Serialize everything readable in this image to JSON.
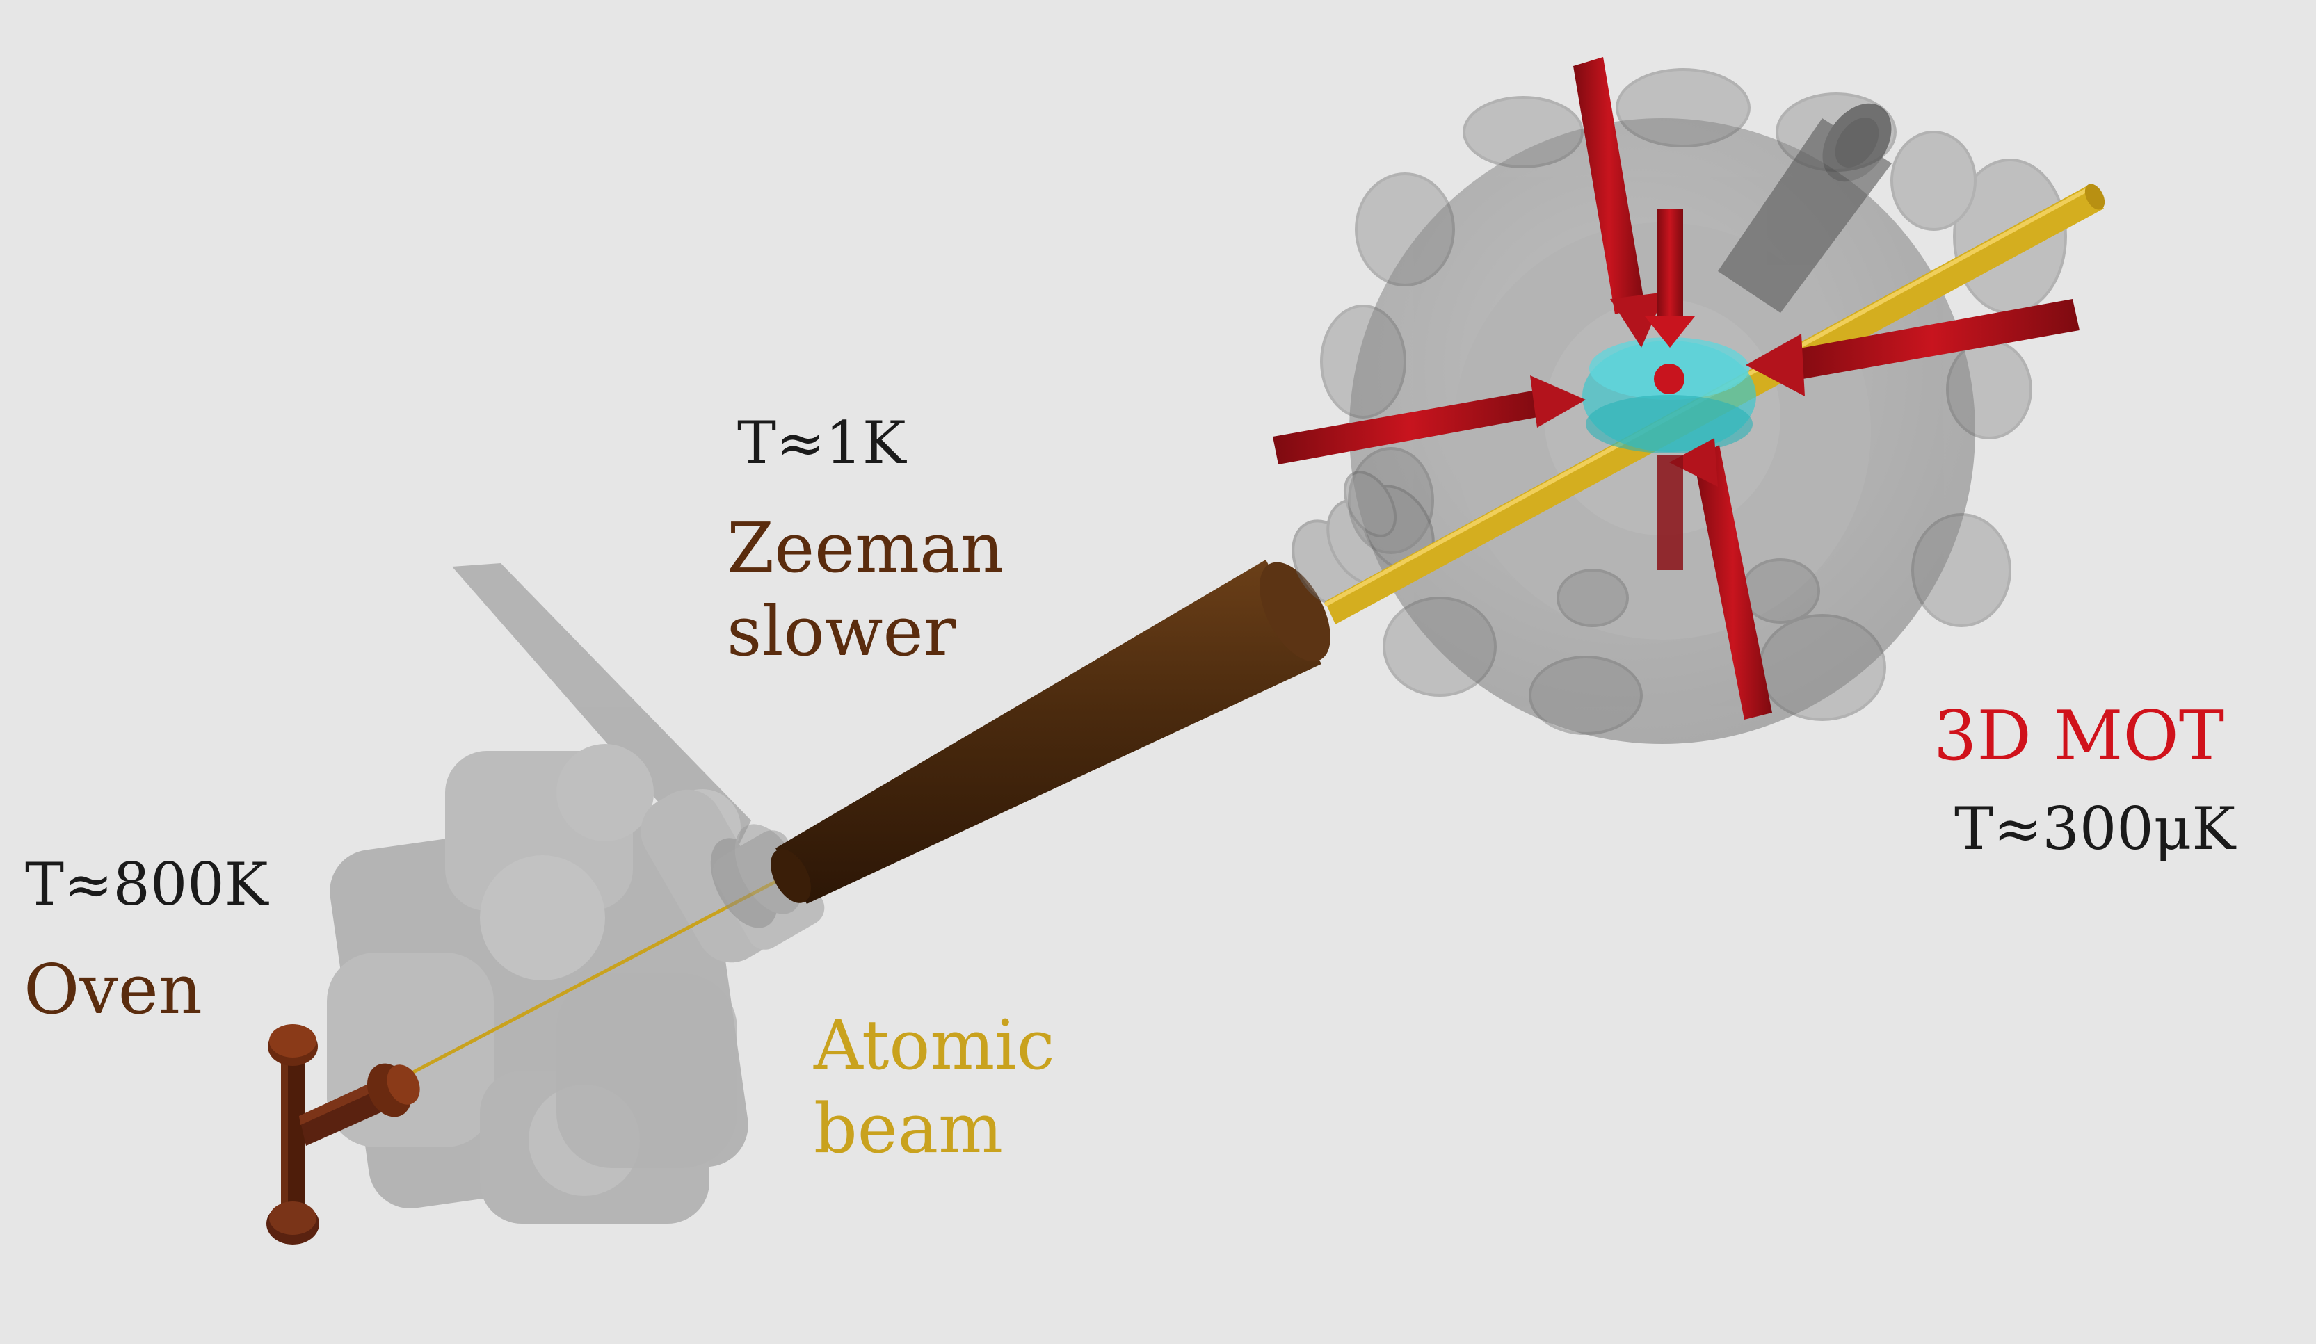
{
  "labels": {
    "oven_temp": "T≈800K",
    "oven": "Oven",
    "slower_temp": "T≈1K",
    "slower_line1": "Zeeman",
    "slower_line2": "slower",
    "beam_line1": "Atomic",
    "beam_line2": "beam",
    "mot": "3D MOT",
    "mot_temp": "T≈300μK"
  },
  "colors": {
    "background": "#e6e6e6",
    "oven_brown": "#5a2c0e",
    "slower_brown": "#4a2a0e",
    "atomic_beam_gold": "#c9a21e",
    "mot_red": "#d0121b",
    "laser_beam_red": "#b3131c",
    "chamber_gray": "#7a7a7a",
    "cloud_cyan": "#3fc6cc"
  }
}
